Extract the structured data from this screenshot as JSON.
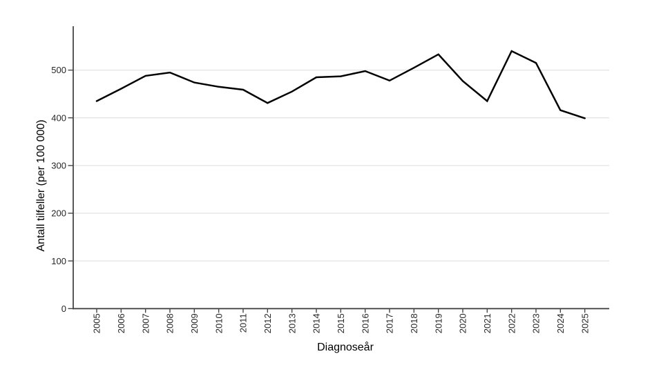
{
  "chart_data": {
    "type": "line",
    "title": "",
    "xlabel": "Diagnoseår",
    "ylabel": "Antall tilfeller (per 100 000)",
    "x": [
      2005,
      2006,
      2007,
      2008,
      2009,
      2010,
      2011,
      2012,
      2013,
      2014,
      2015,
      2016,
      2017,
      2018,
      2019,
      2020,
      2021,
      2022,
      2023,
      2024,
      2025
    ],
    "series": [
      {
        "name": "Antall tilfeller (per 100 000)",
        "color": "#000000",
        "values": [
          435,
          461,
          488,
          495,
          474,
          465,
          459,
          431,
          455,
          485,
          487,
          498,
          478,
          505,
          533,
          477,
          435,
          540,
          515,
          416,
          399
        ]
      }
    ],
    "ylim": [
      0,
      592
    ],
    "yticks": [
      0,
      100,
      200,
      300,
      400,
      500
    ],
    "grid": "horizontal-major",
    "legend": "none",
    "line_width": 2.5,
    "colors": {
      "background": "#ffffff",
      "grid": "#e3e3e3",
      "axis": "#454545",
      "tick_label": "#262626",
      "axis_title": "#000000",
      "series": "#000000"
    }
  }
}
